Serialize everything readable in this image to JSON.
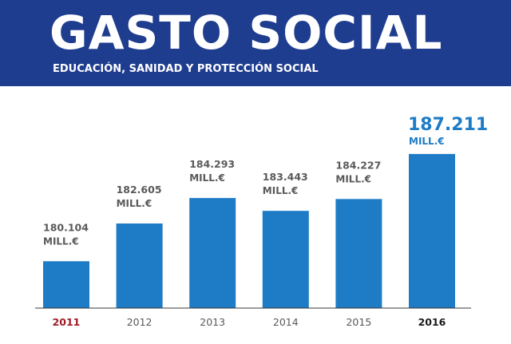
{
  "header": {
    "title": "GASTO SOCIAL",
    "subtitle": "EDUCACIÓN, SANIDAD Y PROTECCIÓN SOCIAL"
  },
  "chart_data": {
    "type": "bar",
    "title": "GASTO SOCIAL",
    "subtitle": "EDUCACIÓN, SANIDAD Y PROTECCIÓN SOCIAL",
    "categories": [
      "2011",
      "2012",
      "2013",
      "2014",
      "2015",
      "2016"
    ],
    "values": [
      180104,
      182605,
      184293,
      183443,
      184227,
      187211
    ],
    "value_labels": [
      "180.104",
      "182.605",
      "184.293",
      "183.443",
      "184.227",
      "187.211"
    ],
    "unit": "MILL.€",
    "ylim": [
      177000,
      188000
    ],
    "xlabel": "",
    "ylabel": "",
    "grid": false
  },
  "colors": {
    "banner": "#1f3d8f",
    "bar": "#1e7cc6",
    "label": "#595959",
    "highlight_label": "#1e7cc6",
    "year_first": "#9e1b24",
    "year_normal": "#595959",
    "year_last": "#1a1a1a",
    "baseline": "#3a3a3a"
  }
}
